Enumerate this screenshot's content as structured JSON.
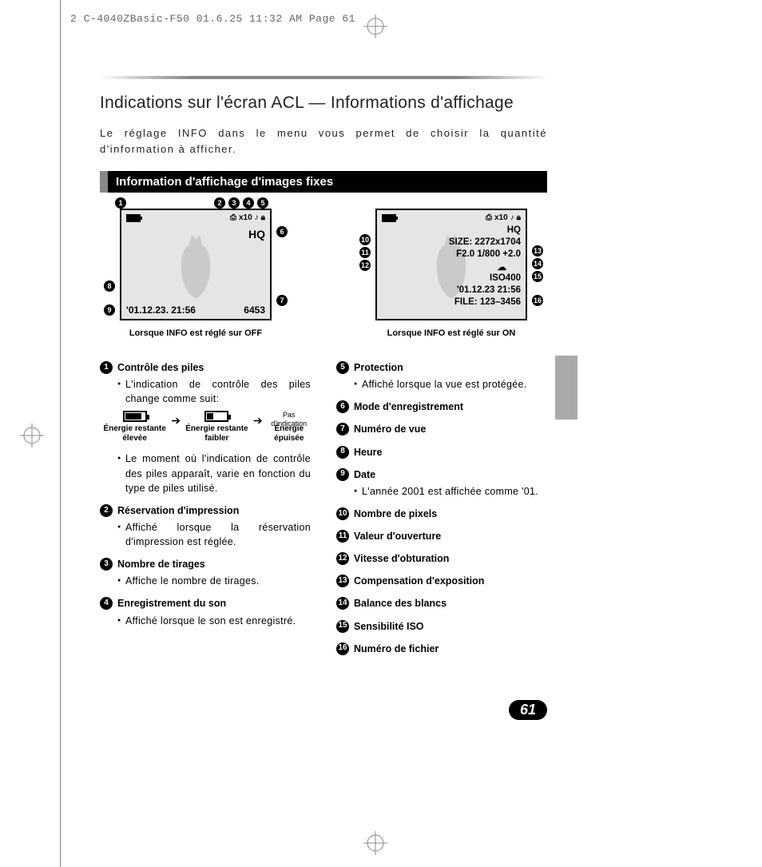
{
  "header_meta": "2 C-4040ZBasic-F50  01.6.25 11:32 AM  Page 61",
  "title": "Indications sur l'écran ACL — Informations d'affichage",
  "intro": "Le réglage INFO dans le menu vous permet de choisir la quantité d'information à afficher.",
  "section_head": "Information d'affichage d'images fixes",
  "screen_off": {
    "caption": "Lorsque INFO est réglé sur OFF",
    "top_label": "x10",
    "hq": "HQ",
    "bottom_left": "'01.12.23. 21:56",
    "bottom_right": "6453"
  },
  "screen_on": {
    "caption": "Lorsque INFO est réglé sur ON",
    "top_label": "x10",
    "hq": "HQ",
    "size": "SIZE: 2272x1704",
    "fline": "F2.0 1/800 +2.0",
    "iso": "ISO400",
    "date": "'01.12.23  21:56",
    "file": "FILE: 123–3456"
  },
  "battery": {
    "high": "Énergie restante élevée",
    "low": "Énergie restante faibler",
    "none_top": "Pas d'indication",
    "none": "Énergie épuisée"
  },
  "items_left": [
    {
      "n": "1",
      "t": "Contrôle des piles",
      "d": [
        "L'indication de contrôle des piles change comme suit:"
      ],
      "batt": true,
      "d2": [
        "Le moment où l'indication de contrôle des piles apparaît, varie en fonction du type de piles utilisé."
      ]
    },
    {
      "n": "2",
      "t": "Réservation d'impression",
      "d": [
        "Affiché lorsque la réservation d'impression est réglée."
      ]
    },
    {
      "n": "3",
      "t": "Nombre de tirages",
      "d": [
        "Affiche le nombre de tirages."
      ]
    },
    {
      "n": "4",
      "t": "Enregistrement du son",
      "d": [
        "Affiché lorsque le son est enregistré."
      ]
    }
  ],
  "items_right": [
    {
      "n": "5",
      "t": "Protection",
      "d": [
        "Affiché lorsque la vue est protégée."
      ]
    },
    {
      "n": "6",
      "t": "Mode d'enregistrement"
    },
    {
      "n": "7",
      "t": "Numéro de vue"
    },
    {
      "n": "8",
      "t": "Heure"
    },
    {
      "n": "9",
      "t": "Date",
      "d": [
        "L'année 2001 est affichée comme '01."
      ]
    },
    {
      "n": "10",
      "t": "Nombre de pixels"
    },
    {
      "n": "11",
      "t": "Valeur d'ouverture"
    },
    {
      "n": "12",
      "t": "Vitesse d'obturation"
    },
    {
      "n": "13",
      "t": "Compensation d'exposition"
    },
    {
      "n": "14",
      "t": "Balance des blancs"
    },
    {
      "n": "15",
      "t": "Sensibilité ISO"
    },
    {
      "n": "16",
      "t": "Numéro de fichier"
    }
  ],
  "page_number": "61",
  "colors": {
    "section_border": "#888888",
    "lcd_bg": "#e5e5e5",
    "side_tab": "#aaaaaa"
  }
}
